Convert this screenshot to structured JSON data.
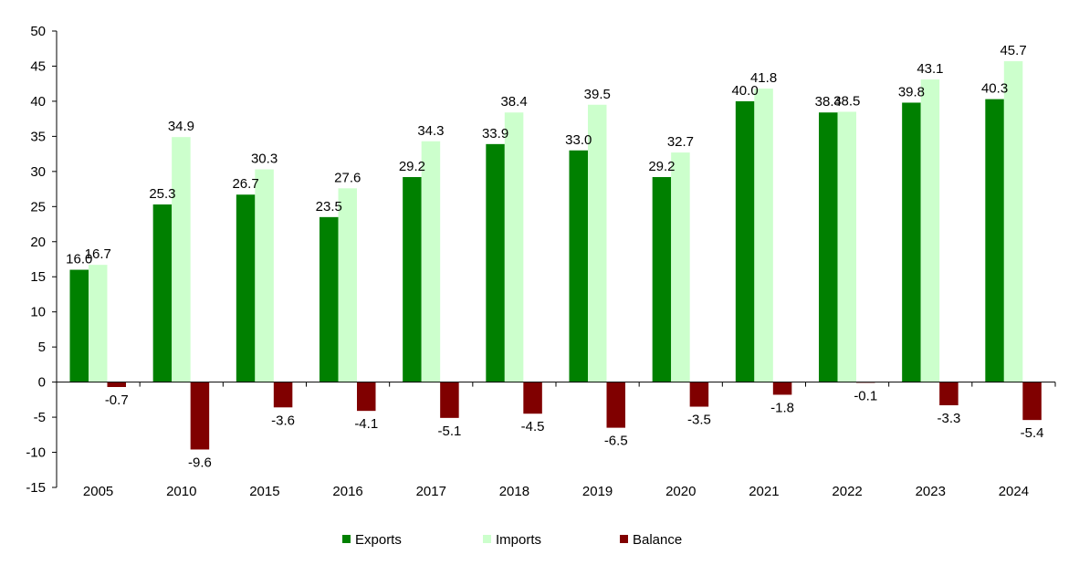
{
  "chart_data": {
    "type": "bar",
    "categories": [
      "2005",
      "2010",
      "2015",
      "2016",
      "2017",
      "2018",
      "2019",
      "2020",
      "2021",
      "2022",
      "2023",
      "2024"
    ],
    "series": [
      {
        "name": "Exports",
        "color": "#008000",
        "values": [
          16.0,
          25.3,
          26.7,
          23.5,
          29.2,
          33.9,
          33.0,
          29.2,
          40.0,
          38.4,
          39.8,
          40.3
        ]
      },
      {
        "name": "Imports",
        "color": "#ccffcc",
        "values": [
          16.7,
          34.9,
          30.3,
          27.6,
          34.3,
          38.4,
          39.5,
          32.7,
          41.8,
          38.5,
          43.1,
          45.7
        ]
      },
      {
        "name": "Balance",
        "color": "#800000",
        "values": [
          -0.7,
          -9.6,
          -3.6,
          -4.1,
          -5.1,
          -4.5,
          -6.5,
          -3.5,
          -1.8,
          -0.1,
          -3.3,
          -5.4
        ]
      }
    ],
    "ylim": [
      -15,
      50
    ],
    "yticks": [
      "50",
      "45",
      "40",
      "35",
      "30",
      "25",
      "20",
      "15",
      "10",
      "5",
      "0",
      "-5",
      "-10",
      "-15"
    ],
    "grid": false,
    "legend_position": "bottom",
    "title": "",
    "xlabel": "",
    "ylabel": ""
  }
}
